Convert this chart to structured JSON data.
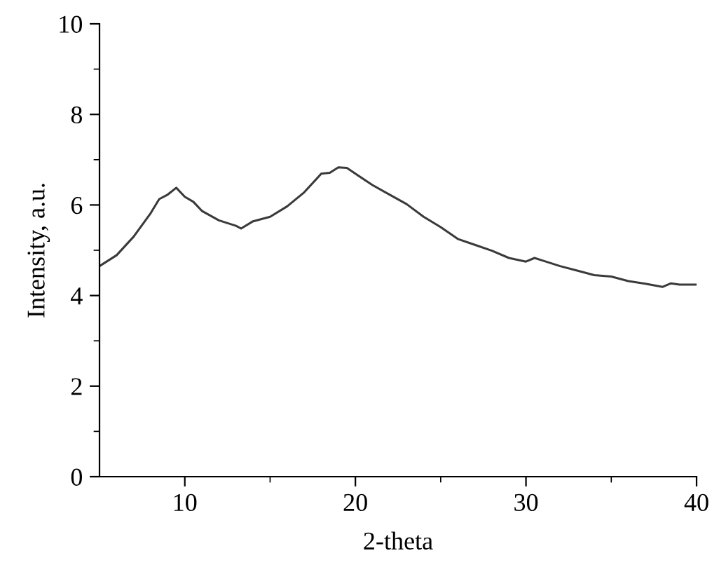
{
  "chart_data": {
    "type": "line",
    "xlabel": "2-theta",
    "ylabel": "Intensity, a.u.",
    "x": [
      5,
      6,
      7,
      8,
      8.5,
      9,
      9.5,
      10,
      10.5,
      11,
      12,
      13,
      13.3,
      14,
      15,
      16,
      17,
      18,
      18.5,
      19,
      19.5,
      20,
      21,
      22,
      23,
      24,
      25,
      26,
      27,
      28,
      29,
      30,
      30.5,
      31,
      32,
      33,
      34,
      35,
      36,
      37,
      38,
      38.5,
      39,
      40
    ],
    "series": [
      {
        "color": "#3a3a3a",
        "values": [
          4.65,
          4.89,
          5.3,
          5.82,
          6.13,
          6.23,
          6.38,
          6.18,
          6.07,
          5.87,
          5.66,
          5.54,
          5.48,
          5.64,
          5.74,
          5.97,
          6.28,
          6.69,
          6.71,
          6.83,
          6.82,
          6.69,
          6.44,
          6.23,
          6.02,
          5.74,
          5.51,
          5.25,
          5.12,
          4.99,
          4.83,
          4.75,
          4.83,
          4.77,
          4.65,
          4.55,
          4.45,
          4.42,
          4.32,
          4.26,
          4.19,
          4.27,
          4.24,
          4.24
        ]
      }
    ],
    "xlim": [
      5,
      40
    ],
    "ylim": [
      0,
      10
    ],
    "xticks": [
      10,
      {
        "value": 15,
        "label": null
      },
      20,
      {
        "value": 25,
        "label": null
      },
      30,
      {
        "value": 35,
        "label": null
      },
      40
    ],
    "yticks": [
      0,
      {
        "value": 1,
        "label": null
      },
      2,
      {
        "value": 3,
        "label": null
      },
      4,
      {
        "value": 5,
        "label": null
      },
      6,
      {
        "value": 7,
        "label": null
      },
      8,
      {
        "value": 9,
        "label": null
      },
      10
    ],
    "grid": false,
    "marker": "none",
    "line_style": "solid"
  }
}
